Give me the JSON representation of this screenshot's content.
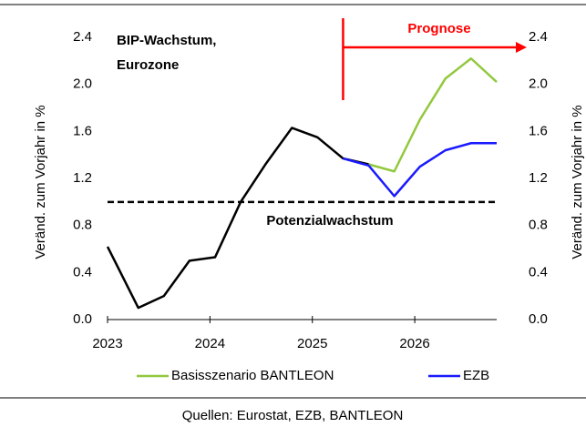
{
  "chart_data": {
    "type": "line",
    "annotation_lines": [
      "BIP-Wachstum,",
      "Eurozone"
    ],
    "y_label": "Veränd. zum Vorjahr in %",
    "y2_label": "Veränd. zum Vorjahr in %",
    "forecast_label": "Prognose",
    "forecast_start": 2025.3,
    "reference_line": {
      "value": 1.0,
      "label": "Potenzialwachstum"
    },
    "source": "Quellen: Eurostat, EZB, BANTLEON",
    "xlim": [
      2023,
      2026.8
    ],
    "xticks": [
      2023,
      2024,
      2025,
      2026
    ],
    "ylim": [
      0,
      2.4
    ],
    "yticks": [
      {
        "value": 0,
        "label": "0.0"
      },
      0.4,
      0.8,
      1.2,
      1.6,
      {
        "value": 2,
        "label": "2.0"
      },
      2.4
    ],
    "y2lim": [
      0,
      2.4
    ],
    "y2ticks": [
      {
        "value": 0,
        "label": "0.0"
      },
      0.4,
      0.8,
      1.2,
      1.6,
      {
        "value": 2,
        "label": "2.0"
      },
      2.4
    ],
    "series": [
      {
        "color": "#000000",
        "x": [
          2023.0,
          2023.3,
          2023.55,
          2023.8,
          2024.05,
          2024.3,
          2024.55,
          2024.8,
          2025.05,
          2025.3,
          2025.55
        ],
        "values": [
          0.62,
          0.1,
          0.2,
          0.5,
          0.53,
          1.0,
          1.33,
          1.63,
          1.55,
          1.37,
          1.32
        ]
      },
      {
        "name": "Basisszenario BANTLEON",
        "color": "#92c83e",
        "x": [
          2025.55,
          2025.8,
          2026.05,
          2026.3,
          2026.55,
          2026.8
        ],
        "values": [
          1.32,
          1.26,
          1.7,
          2.05,
          2.22,
          2.02
        ]
      },
      {
        "name": "EZB",
        "color": "#1a1aff",
        "x": [
          2025.3,
          2025.55,
          2025.8,
          2026.05,
          2026.3,
          2026.55,
          2026.8
        ],
        "values": [
          1.37,
          1.31,
          1.05,
          1.3,
          1.44,
          1.5,
          1.5
        ]
      }
    ]
  }
}
